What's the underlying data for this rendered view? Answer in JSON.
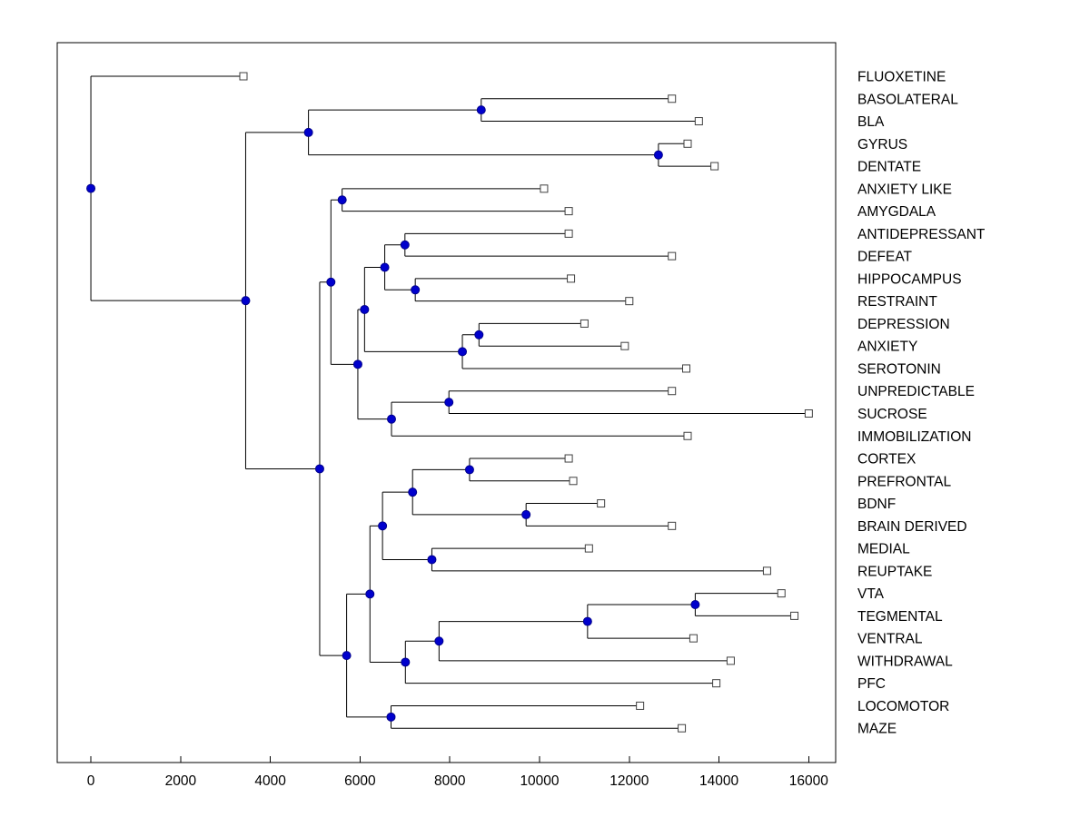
{
  "figure": {
    "background": "#ffffff",
    "plot_border_color": "#000000"
  },
  "chart_data": {
    "type": "dendrogram",
    "orientation": "horizontal-left-to-right",
    "title": "",
    "xlabel": "",
    "ylabel": "",
    "grid": false,
    "legend": false,
    "xlim": [
      -750,
      16600
    ],
    "x_ticks": [
      0,
      2000,
      4000,
      6000,
      8000,
      10000,
      12000,
      14000,
      16000
    ],
    "line_color": "#000000",
    "marker_styles": {
      "internal_node": {
        "shape": "circle",
        "fill": "#0000cd",
        "edge": "#00008b",
        "radius": 4.5
      },
      "leaf_node": {
        "shape": "square",
        "fill": "#ffffff",
        "edge": "#404040",
        "size": 8
      }
    },
    "leaf_labels": [
      "FLUOXETINE",
      "BASOLATERAL",
      "BLA",
      "GYRUS",
      "DENTATE",
      "ANXIETY LIKE",
      "AMYGDALA",
      "ANTIDEPRESSANT",
      "DEFEAT",
      "HIPPOCAMPUS",
      "RESTRAINT",
      "DEPRESSION",
      "ANXIETY",
      "SEROTONIN",
      "UNPREDICTABLE",
      "SUCROSE",
      "IMMOBILIZATION",
      "CORTEX",
      "PREFRONTAL",
      "BDNF",
      "BRAIN DERIVED",
      "MEDIAL",
      "REUPTAKE",
      "VTA",
      "TEGMENTAL",
      "VENTRAL",
      "WITHDRAWAL",
      "PFC",
      "LOCOMOTOR",
      "MAZE"
    ],
    "tree": {
      "x": 0,
      "children": [
        {
          "leaf": "FLUOXETINE",
          "x": 3400
        },
        {
          "x": 3450,
          "children": [
            {
              "x": 4850,
              "children": [
                {
                  "x": 8700,
                  "children": [
                    {
                      "leaf": "BASOLATERAL",
                      "x": 12950
                    },
                    {
                      "leaf": "BLA",
                      "x": 13550
                    }
                  ]
                },
                {
                  "x": 12650,
                  "children": [
                    {
                      "leaf": "GYRUS",
                      "x": 13300
                    },
                    {
                      "leaf": "DENTATE",
                      "x": 13900
                    }
                  ]
                }
              ]
            },
            {
              "x": 5100,
              "children": [
                {
                  "x": 5350,
                  "children": [
                    {
                      "x": 5600,
                      "children": [
                        {
                          "leaf": "ANXIETY LIKE",
                          "x": 10100
                        },
                        {
                          "leaf": "AMYGDALA",
                          "x": 10650
                        }
                      ]
                    },
                    {
                      "x": 5950,
                      "children": [
                        {
                          "x": 6100,
                          "children": [
                            {
                              "x": 6550,
                              "children": [
                                {
                                  "x": 7000,
                                  "children": [
                                    {
                                      "leaf": "ANTIDEPRESSANT",
                                      "x": 10650
                                    },
                                    {
                                      "leaf": "DEFEAT",
                                      "x": 12950
                                    }
                                  ]
                                },
                                {
                                  "x": 7230,
                                  "children": [
                                    {
                                      "leaf": "HIPPOCAMPUS",
                                      "x": 10700
                                    },
                                    {
                                      "leaf": "RESTRAINT",
                                      "x": 12000
                                    }
                                  ]
                                }
                              ]
                            },
                            {
                              "x": 8280,
                              "children": [
                                {
                                  "x": 8650,
                                  "children": [
                                    {
                                      "leaf": "DEPRESSION",
                                      "x": 11000
                                    },
                                    {
                                      "leaf": "ANXIETY",
                                      "x": 11900
                                    }
                                  ]
                                },
                                {
                                  "leaf": "SEROTONIN",
                                  "x": 13270
                                }
                              ]
                            }
                          ]
                        },
                        {
                          "x": 6700,
                          "children": [
                            {
                              "x": 7980,
                              "children": [
                                {
                                  "leaf": "UNPREDICTABLE",
                                  "x": 12950
                                },
                                {
                                  "leaf": "SUCROSE",
                                  "x": 16000
                                }
                              ]
                            },
                            {
                              "leaf": "IMMOBILIZATION",
                              "x": 13300
                            }
                          ]
                        }
                      ]
                    }
                  ]
                },
                {
                  "x": 5700,
                  "children": [
                    {
                      "x": 6220,
                      "children": [
                        {
                          "x": 6500,
                          "children": [
                            {
                              "x": 7170,
                              "children": [
                                {
                                  "x": 8440,
                                  "children": [
                                    {
                                      "leaf": "CORTEX",
                                      "x": 10650
                                    },
                                    {
                                      "leaf": "PREFRONTAL",
                                      "x": 10750
                                    }
                                  ]
                                },
                                {
                                  "x": 9700,
                                  "children": [
                                    {
                                      "leaf": "BDNF",
                                      "x": 11370
                                    },
                                    {
                                      "leaf": "BRAIN DERIVED",
                                      "x": 12950
                                    }
                                  ]
                                }
                              ]
                            },
                            {
                              "x": 7600,
                              "children": [
                                {
                                  "leaf": "MEDIAL",
                                  "x": 11100
                                },
                                {
                                  "leaf": "REUPTAKE",
                                  "x": 15070
                                }
                              ]
                            }
                          ]
                        },
                        {
                          "x": 7010,
                          "children": [
                            {
                              "x": 7760,
                              "children": [
                                {
                                  "x": 11070,
                                  "children": [
                                    {
                                      "x": 13470,
                                      "children": [
                                        {
                                          "leaf": "VTA",
                                          "x": 15390
                                        },
                                        {
                                          "leaf": "TEGMENTAL",
                                          "x": 15680
                                        }
                                      ]
                                    },
                                    {
                                      "leaf": "VENTRAL",
                                      "x": 13430
                                    }
                                  ]
                                },
                                {
                                  "leaf": "WITHDRAWAL",
                                  "x": 14260
                                }
                              ]
                            },
                            {
                              "leaf": "PFC",
                              "x": 13940
                            }
                          ]
                        }
                      ]
                    },
                    {
                      "x": 6690,
                      "children": [
                        {
                          "leaf": "LOCOMOTOR",
                          "x": 12240
                        },
                        {
                          "leaf": "MAZE",
                          "x": 13170
                        }
                      ]
                    }
                  ]
                }
              ]
            }
          ]
        }
      ]
    }
  }
}
